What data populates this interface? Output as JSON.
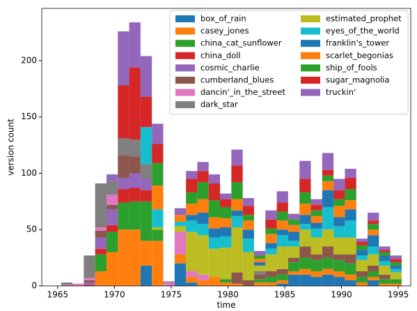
{
  "chart_data": {
    "type": "stacked_histogram",
    "xlabel": "time",
    "ylabel": "version count",
    "bins": [
      1965.3,
      1966.3,
      1967.3,
      1968.3,
      1969.3,
      1970.3,
      1971.3,
      1972.3,
      1973.3,
      1974.3,
      1975.3,
      1976.3,
      1977.3,
      1978.3,
      1979.3,
      1980.3,
      1981.3,
      1982.3,
      1983.3,
      1984.3,
      1985.3,
      1986.3,
      1987.3,
      1988.3,
      1989.3,
      1990.3,
      1991.3,
      1992.3,
      1993.3,
      1994.3,
      1995.3
    ],
    "xlim": [
      1963.6,
      1996.1
    ],
    "ylim": [
      0,
      246.4
    ],
    "xticks": [
      1965,
      1970,
      1975,
      1980,
      1985,
      1990,
      1995
    ],
    "yticks": [
      0,
      50,
      100,
      150,
      200
    ],
    "legend": "upper right",
    "series": [
      {
        "name": "box_of_rain",
        "color": "#1f77b4",
        "values": [
          0,
          0,
          0,
          0,
          0,
          0,
          0,
          18,
          0,
          0,
          20,
          3,
          0,
          0,
          0,
          0,
          0,
          0,
          0,
          2,
          10,
          10,
          8,
          10,
          8,
          5,
          0,
          5,
          0,
          0
        ]
      },
      {
        "name": "casey_jones",
        "color": "#ff7f0e",
        "values": [
          0,
          0,
          0,
          13,
          30,
          50,
          50,
          22,
          40,
          0,
          8,
          5,
          5,
          8,
          3,
          2,
          0,
          3,
          3,
          3,
          3,
          5,
          5,
          5,
          5,
          5,
          3,
          3,
          2,
          2
        ]
      },
      {
        "name": "china_cat_sunflower",
        "color": "#2ca02c",
        "values": [
          0,
          0,
          0,
          15,
          18,
          24,
          25,
          35,
          10,
          0,
          0,
          0,
          0,
          0,
          3,
          0,
          0,
          3,
          5,
          5,
          8,
          10,
          10,
          10,
          10,
          10,
          5,
          5,
          4,
          4
        ]
      },
      {
        "name": "china_doll",
        "color": "#d62728",
        "values": [
          0,
          0,
          1,
          5,
          6,
          12,
          12,
          10,
          0,
          0,
          0,
          0,
          0,
          0,
          0,
          0,
          0,
          0,
          0,
          0,
          0,
          0,
          0,
          0,
          0,
          0,
          0,
          0,
          0,
          0
        ]
      },
      {
        "name": "cosmic_charlie",
        "color": "#9467bd",
        "values": [
          0,
          0,
          2,
          10,
          14,
          10,
          13,
          10,
          0,
          0,
          0,
          0,
          0,
          0,
          0,
          0,
          0,
          0,
          0,
          0,
          0,
          0,
          0,
          0,
          0,
          0,
          0,
          0,
          0,
          0
        ]
      },
      {
        "name": "cumberland_blues",
        "color": "#8c564b",
        "values": [
          0,
          0,
          2,
          6,
          4,
          20,
          15,
          0,
          0,
          0,
          0,
          0,
          0,
          0,
          0,
          10,
          5,
          4,
          5,
          5,
          4,
          10,
          5,
          10,
          5,
          8,
          5,
          5,
          4,
          0
        ]
      },
      {
        "name": "dancin'_in_the_street",
        "color": "#e377c2",
        "values": [
          1,
          2,
          2,
          3,
          9,
          0,
          0,
          0,
          0,
          3,
          20,
          5,
          5,
          0,
          0,
          0,
          0,
          0,
          0,
          0,
          0,
          0,
          0,
          0,
          0,
          0,
          0,
          0,
          0,
          0
        ]
      },
      {
        "name": "dark_star",
        "color": "#7f7f7f",
        "values": [
          2,
          0,
          20,
          39,
          12,
          15,
          15,
          13,
          0,
          1,
          0,
          0,
          0,
          0,
          0,
          0,
          0,
          3,
          0,
          0,
          0,
          0,
          0,
          0,
          0,
          0,
          0,
          0,
          0,
          0
        ]
      },
      {
        "name": "estimated_prophet",
        "color": "#bcbd22",
        "values": [
          0,
          0,
          0,
          0,
          0,
          0,
          0,
          0,
          2,
          0,
          5,
          35,
          35,
          25,
          28,
          40,
          25,
          5,
          15,
          20,
          10,
          15,
          15,
          15,
          15,
          15,
          10,
          10,
          8,
          6
        ]
      },
      {
        "name": "eyes_of_the_world",
        "color": "#17becf",
        "values": [
          0,
          0,
          0,
          0,
          0,
          0,
          0,
          33,
          16,
          0,
          4,
          10,
          10,
          10,
          10,
          10,
          12,
          0,
          5,
          10,
          5,
          5,
          8,
          20,
          10,
          15,
          4,
          7,
          4,
          3
        ]
      },
      {
        "name": "franklin's_tower",
        "color": "#1f77b4",
        "values": [
          0,
          0,
          0,
          0,
          0,
          0,
          0,
          0,
          0,
          0,
          0,
          5,
          10,
          8,
          8,
          5,
          8,
          3,
          5,
          5,
          8,
          8,
          5,
          15,
          8,
          10,
          5,
          10,
          5,
          3
        ]
      },
      {
        "name": "scarlet_begonias",
        "color": "#ff7f0e",
        "values": [
          0,
          0,
          0,
          0,
          0,
          0,
          0,
          0,
          21,
          0,
          6,
          10,
          12,
          10,
          8,
          10,
          8,
          3,
          8,
          8,
          6,
          10,
          6,
          8,
          10,
          8,
          0,
          5,
          0,
          0
        ]
      },
      {
        "name": "ship_of_fools",
        "color": "#2ca02c",
        "values": [
          0,
          0,
          0,
          0,
          0,
          0,
          0,
          0,
          20,
          0,
          0,
          10,
          15,
          15,
          10,
          15,
          5,
          3,
          5,
          8,
          5,
          10,
          5,
          5,
          6,
          10,
          4,
          5,
          3,
          3
        ]
      },
      {
        "name": "sugar_magnolia",
        "color": "#d62728",
        "values": [
          0,
          0,
          0,
          0,
          0,
          47,
          64,
          27,
          17,
          0,
          0,
          12,
          10,
          15,
          7,
          15,
          8,
          0,
          8,
          8,
          0,
          12,
          5,
          5,
          8,
          10,
          3,
          3,
          2,
          3
        ]
      },
      {
        "name": "truckin'",
        "color": "#9467bd",
        "values": [
          0,
          0,
          0,
          0,
          6,
          48,
          40,
          36,
          18,
          0,
          6,
          7,
          8,
          8,
          5,
          14,
          7,
          4,
          8,
          10,
          5,
          16,
          5,
          15,
          10,
          8,
          3,
          7,
          3,
          3
        ]
      }
    ]
  }
}
